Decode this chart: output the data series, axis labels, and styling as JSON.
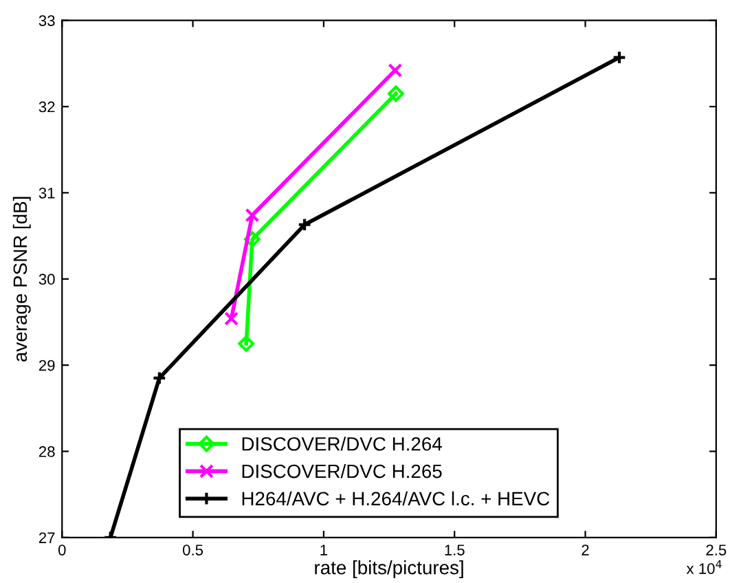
{
  "chart_data": {
    "type": "line",
    "xlabel": "rate [bits/pictures]",
    "ylabel": "average PSNR [dB]",
    "xlim": [
      0,
      2.5
    ],
    "xticks": [
      0,
      0.5,
      1,
      1.5,
      2,
      2.5
    ],
    "ylim": [
      27,
      33
    ],
    "yticks": [
      27,
      28,
      29,
      30,
      31,
      32,
      33
    ],
    "grid": false,
    "legend": "bottom",
    "annotations": [
      "x 10$^{4}$"
    ],
    "series": [
      {
        "name": "DISCOVER/DVC H.264",
        "color": "#00ff00",
        "marker": "diamond",
        "x": [
          0.704,
          0.727,
          1.276
        ],
        "values": [
          29.25,
          30.46,
          32.15
        ]
      },
      {
        "name": "DISCOVER/DVC H.265",
        "color": "#ff00ff",
        "marker": "cross",
        "x": [
          0.647,
          0.727,
          1.273
        ],
        "values": [
          29.54,
          30.74,
          32.42
        ]
      },
      {
        "name": "H264/AVC + H.264/AVC l.c. + HEVC",
        "color": "#000000",
        "marker": "plus",
        "x": [
          0.185,
          0.372,
          0.927,
          2.13
        ],
        "values": [
          27.0,
          28.85,
          30.63,
          32.57
        ]
      }
    ]
  }
}
